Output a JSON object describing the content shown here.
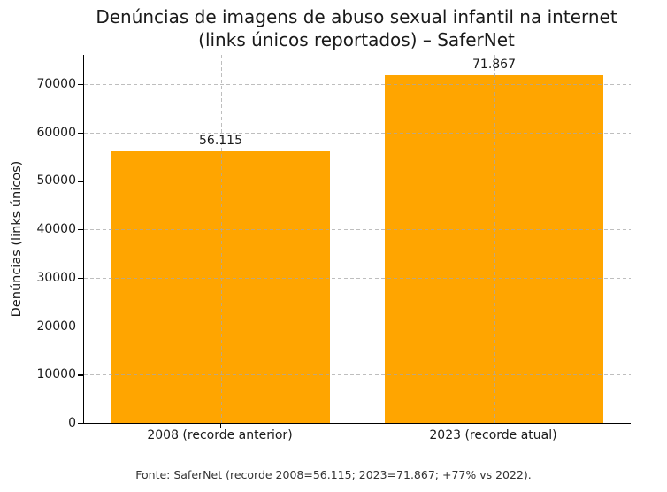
{
  "title": {
    "line1": "Denúncias de imagens de abuso sexual infantil na internet",
    "line2": "(links únicos reportados) – SaferNet"
  },
  "footer": "Fonte: SaferNet (recorde 2008=56.115; 2023=71.867; +77% vs 2022).",
  "chart_data": {
    "type": "bar",
    "title": "Denúncias de imagens de abuso sexual infantil na internet (links únicos reportados) – SaferNet",
    "categories": [
      "2008 (recorde anterior)",
      "2023 (recorde atual)"
    ],
    "values": [
      56115,
      71867
    ],
    "value_labels": [
      "56.115",
      "71.867"
    ],
    "xlabel": "",
    "ylabel": "Denúncias (links únicos)",
    "yticks": [
      0,
      10000,
      20000,
      30000,
      40000,
      50000,
      60000,
      70000
    ],
    "ylim": [
      0,
      76000
    ],
    "bar_color": "#FFA500",
    "grid": "on",
    "grid_style": "dashed",
    "legend": "none",
    "annotation": "Fonte: SaferNet (recorde 2008=56.115; 2023=71.867; +77% vs 2022)."
  }
}
